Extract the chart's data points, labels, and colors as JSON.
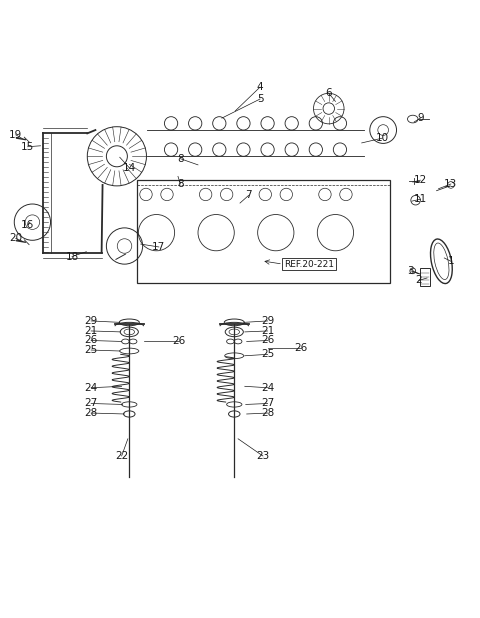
{
  "title": "",
  "bg_color": "#ffffff",
  "line_color": "#2a2a2a",
  "text_color": "#1a1a1a",
  "fig_width": 4.8,
  "fig_height": 6.18,
  "dpi": 100,
  "font_size": 7.5
}
